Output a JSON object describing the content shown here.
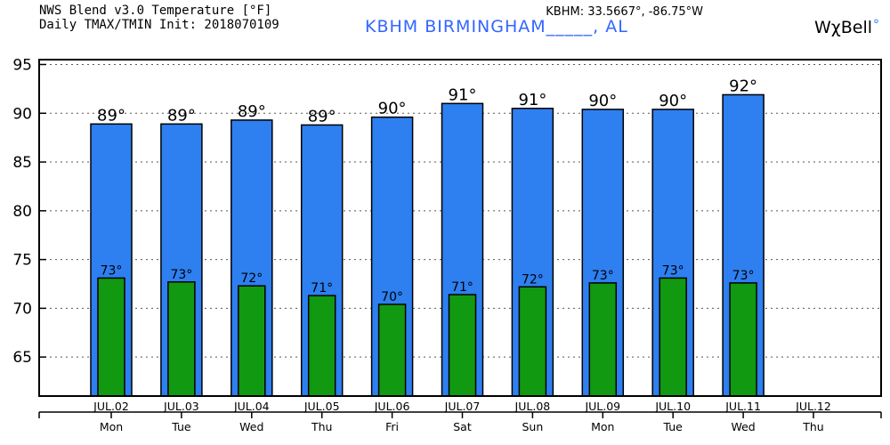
{
  "header": {
    "title_line1": "NWS Blend v3.0 Temperature [°F]",
    "title_line2": "Daily TMAX/TMIN Init: 2018070109",
    "station": "KBHM BIRMINGHAM_____, AL",
    "coords": "KBHM: 33.5667°, -86.75°W",
    "brand": "WχBell",
    "brand_mark": "°"
  },
  "colors": {
    "tmax_bar": "#2e7ff0",
    "tmin_bar": "#119911",
    "gridline": "#555555"
  },
  "chart_data": {
    "type": "bar",
    "categories": [
      "JUL.02",
      "JUL.03",
      "JUL.04",
      "JUL.05",
      "JUL.06",
      "JUL.07",
      "JUL.08",
      "JUL.09",
      "JUL.10",
      "JUL.11",
      "JUL.12"
    ],
    "weekdays": [
      "Mon",
      "Tue",
      "Wed",
      "Thu",
      "Fri",
      "Sat",
      "Sun",
      "Mon",
      "Tue",
      "Wed",
      "Thu"
    ],
    "series": [
      {
        "name": "TMAX",
        "values": [
          88.9,
          88.9,
          89.3,
          88.8,
          89.6,
          91.0,
          90.5,
          90.4,
          90.4,
          91.9,
          null
        ],
        "labels": [
          "89°",
          "89°",
          "89°",
          "89°",
          "90°",
          "91°",
          "91°",
          "90°",
          "90°",
          "92°",
          ""
        ]
      },
      {
        "name": "TMIN",
        "values": [
          73.1,
          72.7,
          72.3,
          71.3,
          70.4,
          71.4,
          72.2,
          72.6,
          73.1,
          72.6,
          null
        ],
        "labels": [
          "73°",
          "73°",
          "72°",
          "71°",
          "70°",
          "71°",
          "72°",
          "73°",
          "73°",
          "73°",
          ""
        ]
      }
    ],
    "yticks": [
      65,
      70,
      75,
      80,
      85,
      90,
      95
    ],
    "ylim": [
      61,
      95.5
    ],
    "grid": true
  }
}
